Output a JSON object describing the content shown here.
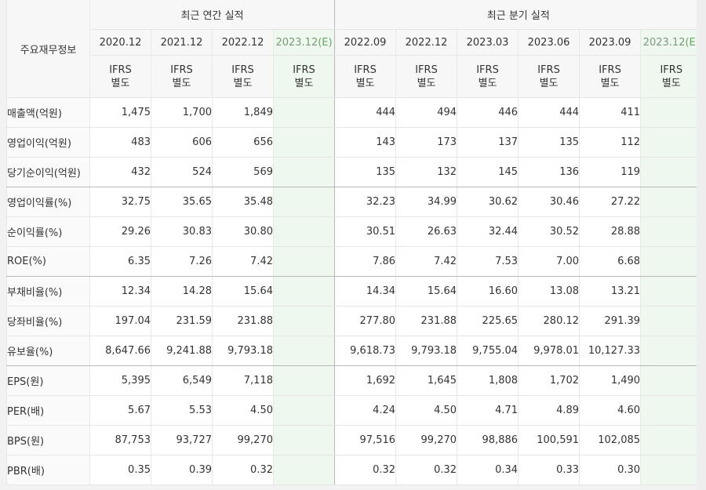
{
  "header": {
    "label_head": "주요재무정보",
    "group_annual": "최근 연간 실적",
    "group_quarter": "최근 분기 실적",
    "ifrs_top": "IFRS",
    "ifrs_bottom": "별도",
    "estimate_mark": "(E)"
  },
  "annual_periods": [
    "2020.12",
    "2021.12",
    "2022.12",
    "2023.12"
  ],
  "quarter_periods": [
    "2022.09",
    "2022.12",
    "2023.03",
    "2023.06",
    "2023.09",
    "2023.12"
  ],
  "rows": [
    {
      "label": "매출액(억원)",
      "annual": [
        "1,475",
        "1,700",
        "1,849",
        ""
      ],
      "quarter": [
        "444",
        "494",
        "446",
        "444",
        "411",
        ""
      ]
    },
    {
      "label": "영업이익(억원)",
      "annual": [
        "483",
        "606",
        "656",
        ""
      ],
      "quarter": [
        "143",
        "173",
        "137",
        "135",
        "112",
        ""
      ]
    },
    {
      "label": "당기순이익(억원)",
      "annual": [
        "432",
        "524",
        "569",
        ""
      ],
      "quarter": [
        "135",
        "132",
        "145",
        "136",
        "119",
        ""
      ]
    },
    {
      "label": "영업이익률(%)",
      "annual": [
        "32.75",
        "35.65",
        "35.48",
        ""
      ],
      "quarter": [
        "32.23",
        "34.99",
        "30.62",
        "30.46",
        "27.22",
        ""
      ]
    },
    {
      "label": "순이익률(%)",
      "annual": [
        "29.26",
        "30.83",
        "30.80",
        ""
      ],
      "quarter": [
        "30.51",
        "26.63",
        "32.44",
        "30.52",
        "28.88",
        ""
      ]
    },
    {
      "label": "ROE(%)",
      "annual": [
        "6.35",
        "7.26",
        "7.42",
        ""
      ],
      "quarter": [
        "7.86",
        "7.42",
        "7.53",
        "7.00",
        "6.68",
        ""
      ]
    },
    {
      "label": "부채비율(%)",
      "annual": [
        "12.34",
        "14.28",
        "15.64",
        ""
      ],
      "quarter": [
        "14.34",
        "15.64",
        "16.60",
        "13.08",
        "13.21",
        ""
      ]
    },
    {
      "label": "당좌비율(%)",
      "annual": [
        "197.04",
        "231.59",
        "231.88",
        ""
      ],
      "quarter": [
        "277.80",
        "231.88",
        "225.65",
        "280.12",
        "291.39",
        ""
      ]
    },
    {
      "label": "유보율(%)",
      "annual": [
        "8,647.66",
        "9,241.88",
        "9,793.18",
        ""
      ],
      "quarter": [
        "9,618.73",
        "9,793.18",
        "9,755.04",
        "9,978.01",
        "10,127.33",
        ""
      ]
    },
    {
      "label": "EPS(원)",
      "annual": [
        "5,395",
        "6,549",
        "7,118",
        ""
      ],
      "quarter": [
        "1,692",
        "1,645",
        "1,808",
        "1,702",
        "1,490",
        ""
      ]
    },
    {
      "label": "PER(배)",
      "annual": [
        "5.67",
        "5.53",
        "4.50",
        ""
      ],
      "quarter": [
        "4.24",
        "4.50",
        "4.71",
        "4.89",
        "4.60",
        ""
      ]
    },
    {
      "label": "BPS(원)",
      "annual": [
        "87,753",
        "93,727",
        "99,270",
        ""
      ],
      "quarter": [
        "97,516",
        "99,270",
        "98,886",
        "100,591",
        "102,085",
        ""
      ]
    },
    {
      "label": "PBR(배)",
      "annual": [
        "0.35",
        "0.39",
        "0.32",
        ""
      ],
      "quarter": [
        "0.32",
        "0.32",
        "0.34",
        "0.33",
        "0.30",
        ""
      ]
    }
  ]
}
